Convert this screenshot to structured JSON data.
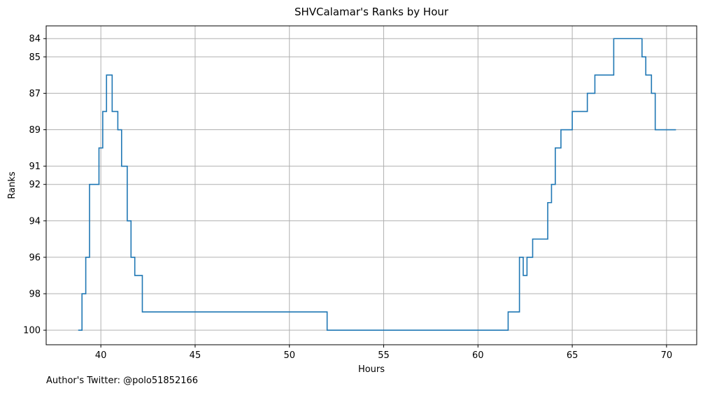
{
  "chart_data": {
    "type": "line",
    "step": "post",
    "title": "SHVCalamar's Ranks by Hour",
    "xlabel": "Hours",
    "ylabel": "Ranks",
    "xlim": [
      37.1,
      71.6
    ],
    "ylim": [
      100.8,
      83.3
    ],
    "y_inverted": true,
    "grid": true,
    "color": "#1f77b4",
    "xticks": [
      40,
      45,
      50,
      55,
      60,
      65,
      70
    ],
    "xtick_labels": [
      "40",
      "45",
      "50",
      "55",
      "60",
      "65",
      "70"
    ],
    "yticks": [
      84,
      85,
      87,
      89,
      91,
      92,
      94,
      96,
      98,
      100
    ],
    "ytick_labels": [
      "84",
      "85",
      "87",
      "89",
      "91",
      "92",
      "94",
      "96",
      "98",
      "100"
    ],
    "series": [
      {
        "x": [
          38.8,
          39.0,
          39.2,
          39.4,
          39.9,
          40.1,
          40.3,
          40.6,
          40.9,
          41.1,
          41.4,
          41.6,
          41.8,
          42.2,
          52.0,
          61.6,
          62.2,
          62.4,
          62.6,
          62.9,
          63.7,
          63.9,
          64.1,
          64.4,
          65.0,
          65.8,
          66.2,
          67.2,
          68.7,
          68.9,
          69.2,
          69.4,
          70.5
        ],
        "y": [
          100,
          98,
          96,
          92,
          90,
          88,
          86,
          88,
          89,
          91,
          94,
          96,
          97,
          99,
          100,
          99,
          96,
          97,
          96,
          95,
          93,
          92,
          90,
          89,
          88,
          87,
          86,
          84,
          85,
          86,
          87,
          89,
          89
        ]
      }
    ]
  },
  "footnote": "Author's Twitter: @polo51852166"
}
